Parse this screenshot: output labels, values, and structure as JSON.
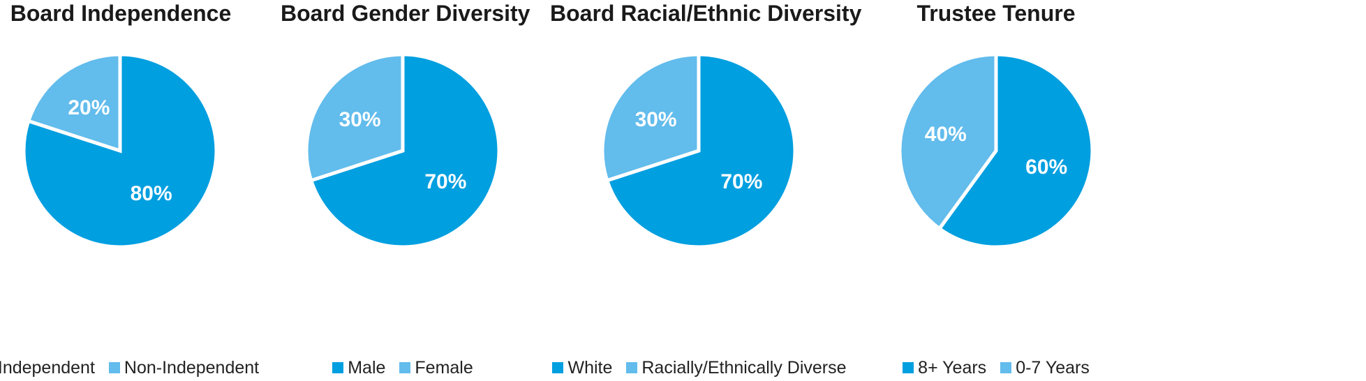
{
  "colors": {
    "dark": "#009fe0",
    "light": "#62bcec"
  },
  "chart_data": [
    {
      "type": "pie",
      "title": "Board Independence",
      "slices": [
        {
          "label": "Independent",
          "value": 80,
          "display": "80%",
          "color": "#009fe0"
        },
        {
          "label": "Non-Independent",
          "value": 20,
          "display": "20%",
          "color": "#62bcec"
        }
      ],
      "legend_position": "bottom"
    },
    {
      "type": "pie",
      "title": "Board Gender Diversity",
      "slices": [
        {
          "label": "Male",
          "value": 70,
          "display": "70%",
          "color": "#009fe0"
        },
        {
          "label": "Female",
          "value": 30,
          "display": "30%",
          "color": "#62bcec"
        }
      ],
      "legend_position": "bottom"
    },
    {
      "type": "pie",
      "title": "Board Racial/Ethnic Diversity",
      "slices": [
        {
          "label": "White",
          "value": 70,
          "display": "70%",
          "color": "#009fe0"
        },
        {
          "label": "Racially/Ethnically Diverse",
          "value": 30,
          "display": "30%",
          "color": "#62bcec"
        }
      ],
      "legend_position": "bottom"
    },
    {
      "type": "pie",
      "title": "Trustee Tenure",
      "slices": [
        {
          "label": "8+ Years",
          "value": 60,
          "display": "60%",
          "color": "#009fe0"
        },
        {
          "label": "0-7 Years",
          "value": 40,
          "display": "40%",
          "color": "#62bcec"
        }
      ],
      "legend_position": "bottom"
    }
  ]
}
